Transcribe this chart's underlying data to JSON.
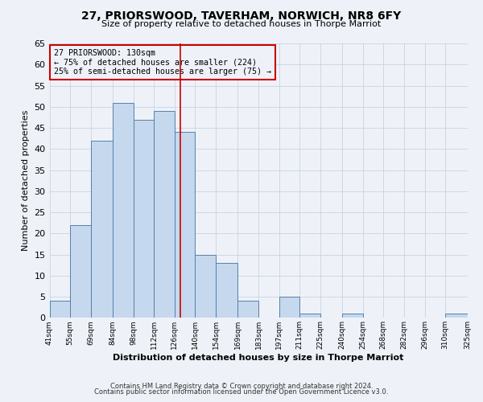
{
  "title": "27, PRIORSWOOD, TAVERHAM, NORWICH, NR8 6FY",
  "subtitle": "Size of property relative to detached houses in Thorpe Marriot",
  "xlabel": "Distribution of detached houses by size in Thorpe Marriot",
  "ylabel": "Number of detached properties",
  "footer_line1": "Contains HM Land Registry data © Crown copyright and database right 2024.",
  "footer_line2": "Contains public sector information licensed under the Open Government Licence v3.0.",
  "bin_edges": [
    41,
    55,
    69,
    84,
    98,
    112,
    126,
    140,
    154,
    169,
    183,
    197,
    211,
    225,
    240,
    254,
    268,
    282,
    296,
    310,
    325
  ],
  "bin_labels": [
    "41sqm",
    "55sqm",
    "69sqm",
    "84sqm",
    "98sqm",
    "112sqm",
    "126sqm",
    "140sqm",
    "154sqm",
    "169sqm",
    "183sqm",
    "197sqm",
    "211sqm",
    "225sqm",
    "240sqm",
    "254sqm",
    "268sqm",
    "282sqm",
    "296sqm",
    "310sqm",
    "325sqm"
  ],
  "counts": [
    4,
    22,
    42,
    51,
    47,
    49,
    44,
    15,
    13,
    4,
    0,
    5,
    1,
    0,
    1,
    0,
    0,
    0,
    0,
    1
  ],
  "bar_color": "#c5d8ed",
  "bar_edge_color": "#5580aa",
  "property_size": 130,
  "vline_color": "#cc0000",
  "annotation_line1": "27 PRIORSWOOD: 130sqm",
  "annotation_line2": "← 75% of detached houses are smaller (224)",
  "annotation_line3": "25% of semi-detached houses are larger (75) →",
  "annotation_box_color": "#cc0000",
  "annotation_text_color": "#000000",
  "ylim": [
    0,
    65
  ],
  "yticks": [
    0,
    5,
    10,
    15,
    20,
    25,
    30,
    35,
    40,
    45,
    50,
    55,
    60,
    65
  ],
  "grid_color": "#c8d4e0",
  "bg_color": "#eef2f8"
}
